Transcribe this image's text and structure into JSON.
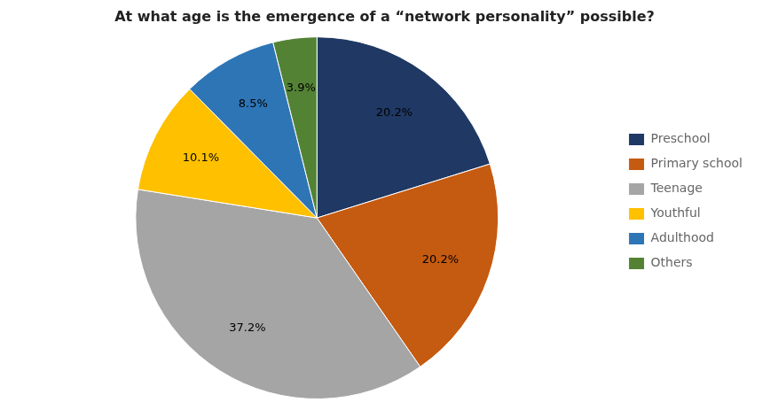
{
  "chart_data": {
    "type": "pie",
    "title": "At what age is the emergence of a “network personality” possible?",
    "categories": [
      "Preschool",
      "Primary school",
      "Teenage",
      "Youthful",
      "Adulthood",
      "Others"
    ],
    "values": [
      20.2,
      20.2,
      37.2,
      10.1,
      8.5,
      3.9
    ],
    "value_labels": [
      "20.2%",
      "20.2%",
      "37.2%",
      "10.1%",
      "8.5%",
      "3.9%"
    ],
    "colors": [
      "#1F3864",
      "#C55A11",
      "#A5A5A5",
      "#FFC000",
      "#2E75B6",
      "#548235"
    ],
    "data_labels": true,
    "legend": "right"
  }
}
